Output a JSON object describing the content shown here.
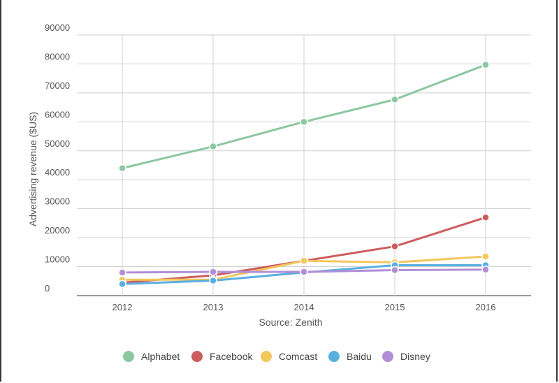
{
  "chart_data": {
    "type": "line",
    "title": "",
    "xlabel": "Source: Zenith",
    "ylabel": "Advertising revenue ($US)",
    "categories": [
      "2012",
      "2013",
      "2014",
      "2015",
      "2016"
    ],
    "ylim": [
      0,
      90000
    ],
    "yticks": [
      0,
      10000,
      20000,
      30000,
      40000,
      50000,
      60000,
      70000,
      80000,
      90000
    ],
    "grid": true,
    "legend_position": "bottom",
    "series": [
      {
        "name": "Alphabet",
        "color": "#8cc7a1",
        "values": [
          44000,
          51500,
          60000,
          67700,
          79700
        ]
      },
      {
        "name": "Facebook",
        "color": "#cd5c5c",
        "values": [
          4500,
          7000,
          12000,
          17000,
          27000
        ]
      },
      {
        "name": "Comcast",
        "color": "#f2c75c",
        "values": [
          5500,
          5500,
          12000,
          11500,
          13500
        ]
      },
      {
        "name": "Baidu",
        "color": "#5aafe0",
        "values": [
          4000,
          5200,
          8000,
          10500,
          10500
        ]
      },
      {
        "name": "Disney",
        "color": "#b18fd6",
        "values": [
          8000,
          8200,
          8200,
          8800,
          9000
        ]
      }
    ]
  }
}
